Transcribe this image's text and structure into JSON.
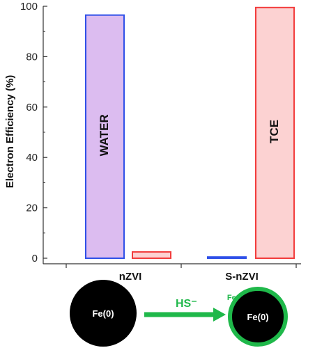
{
  "chart_data": {
    "type": "bar",
    "ylabel": "Electron Efficiency (%)",
    "ylim": [
      0,
      100
    ],
    "yticks": [
      0,
      20,
      40,
      60,
      80,
      100
    ],
    "categories": [
      "nZVI",
      "S-nZVI"
    ],
    "series": [
      {
        "values": [
          96.5,
          0.5
        ],
        "color": "#2f50e8",
        "fill": "#dcbcf0",
        "label": "WATER"
      },
      {
        "values": [
          2.5,
          99.5
        ],
        "color": "#f23c3c",
        "fill": "#fcd2d2",
        "label": "TCE"
      }
    ]
  },
  "scheme": {
    "left_particle": "Fe(0)",
    "reagent": "HS⁻",
    "shell_label": "FeS",
    "right_particle": "Fe(0)",
    "arrow_color": "#1fb84a",
    "shell_color": "#1fb84a"
  }
}
